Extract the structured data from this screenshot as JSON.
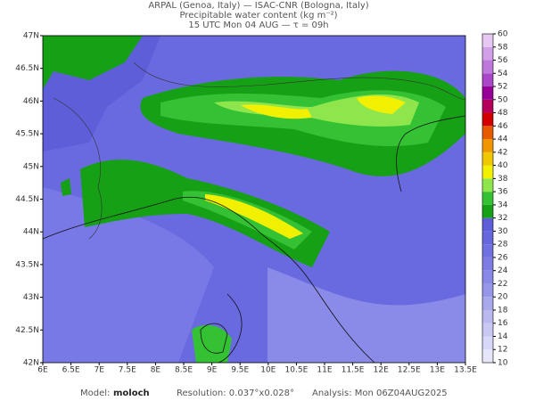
{
  "header": {
    "line1": "ARPAL (Genoa, Italy)  —  ISAC-CNR (Bologna, Italy)",
    "line2": "Precipitable water content (kg m⁻²)",
    "line3": "15 UTC Mon 04 AUG  —  τ = 09h"
  },
  "x_axis": {
    "labels": [
      "6E",
      "6.5E",
      "7E",
      "7.5E",
      "8E",
      "8.5E",
      "9E",
      "9.5E",
      "10E",
      "10.5E",
      "11E",
      "11.5E",
      "12E",
      "12.5E",
      "13E",
      "13.5E"
    ]
  },
  "y_axis": {
    "labels": [
      "47N",
      "46.5N",
      "46N",
      "45.5N",
      "45N",
      "44.5N",
      "44N",
      "43.5N",
      "43N",
      "42.5N",
      "42N"
    ]
  },
  "colorbar": {
    "levels": [
      10,
      12,
      14,
      16,
      18,
      20,
      22,
      24,
      26,
      28,
      30,
      32,
      34,
      36,
      38,
      40,
      42,
      44,
      46,
      48,
      50,
      52,
      54,
      56,
      58,
      60
    ],
    "colors": [
      "#e6e6fa",
      "#d7d7f7",
      "#c8c8f3",
      "#b9b9ef",
      "#a8a8ec",
      "#9696e8",
      "#8888e6",
      "#7c7ce3",
      "#7070e0",
      "#6767dd",
      "#5e5ed9",
      "#15a015",
      "#34c234",
      "#8ee64c",
      "#f0f000",
      "#f0c800",
      "#f09600",
      "#e65a00",
      "#d20000",
      "#b4005a",
      "#960096",
      "#aa46c8",
      "#be78dc",
      "#d2a0e8",
      "#e6c8f2"
    ]
  },
  "footer": {
    "model_label": "Model:",
    "model": "moloch",
    "resolution": "Resolution: 0.037°x0.028°",
    "analysis": "Analysis: Mon 06Z04AUG2025"
  }
}
